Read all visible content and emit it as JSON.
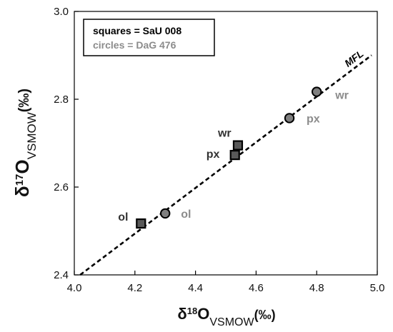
{
  "chart_data": {
    "type": "scatter",
    "xlim": [
      4.0,
      5.0
    ],
    "ylim": [
      2.4,
      3.0
    ],
    "x_ticks": [
      "4.0",
      "4.2",
      "4.4",
      "4.6",
      "4.8",
      "5.0"
    ],
    "y_ticks": [
      "2.4",
      "2.6",
      "2.8",
      "3.0"
    ],
    "x_tick_values": [
      4.0,
      4.2,
      4.4,
      4.6,
      4.8,
      5.0
    ],
    "y_tick_values": [
      2.4,
      2.6,
      2.8,
      3.0
    ],
    "xlabel": {
      "main": "δ",
      "sup": "18",
      "mid": "O",
      "sub": "VSMOW",
      "unit": "(‰)"
    },
    "ylabel": {
      "main": "δ",
      "sup": "17",
      "mid": "O",
      "sub": "VSMOW",
      "unit": "(‰)"
    },
    "legend": {
      "position": "top-left",
      "entries": [
        "squares = SaU 008",
        "circles = DaG 476"
      ],
      "colors": [
        "#000000",
        "#8c8c8c"
      ]
    },
    "reference_line": {
      "label": "MFL",
      "style": "dashed",
      "x": [
        4.0,
        5.0
      ],
      "y": [
        2.39,
        2.91
      ]
    },
    "series": [
      {
        "name": "SaU 008",
        "marker": "square",
        "color": "#595959",
        "label_color": "#333333",
        "points": [
          {
            "label": "ol",
            "x": 4.22,
            "y": 2.517
          },
          {
            "label": "px",
            "x": 4.53,
            "y": 2.673
          },
          {
            "label": "wr",
            "x": 4.54,
            "y": 2.695
          }
        ]
      },
      {
        "name": "DaG 476",
        "marker": "circle",
        "color": "#7f7f7f",
        "label_color": "#8c8c8c",
        "points": [
          {
            "label": "ol",
            "x": 4.3,
            "y": 2.54
          },
          {
            "label": "px",
            "x": 4.71,
            "y": 2.757
          },
          {
            "label": "wr",
            "x": 4.8,
            "y": 2.817
          }
        ]
      }
    ]
  }
}
